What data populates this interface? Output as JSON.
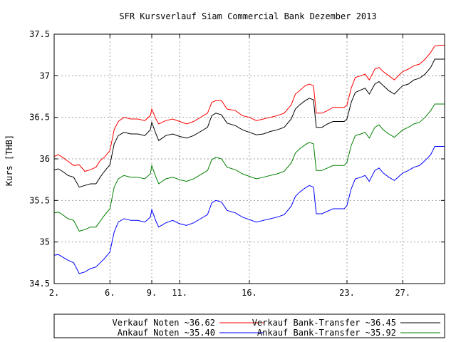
{
  "chart_data": {
    "type": "line",
    "title": "SFR Kursverlauf Siam Commercial Bank Dezember 2013",
    "ylabel": "Kurs [THB]",
    "xlabel": "",
    "ylim": [
      34.5,
      37.5
    ],
    "xlim": [
      2,
      30
    ],
    "grid": true,
    "legend_position": "bottom",
    "y_ticks": [
      34.5,
      35,
      35.5,
      36,
      36.5,
      37,
      37.5
    ],
    "y_tick_labels": [
      "34.5",
      "35",
      "35.5",
      "36",
      "36.5",
      "37",
      "37.5"
    ],
    "x_ticks": [
      2,
      6,
      9,
      11,
      16,
      23,
      27
    ],
    "x_tick_labels": [
      "2.",
      "6.",
      "9.",
      "11.",
      "16.",
      "23.",
      "27."
    ],
    "series": [
      {
        "name": "Verkauf Noten ~36.62",
        "color": "#ff0000",
        "points": [
          [
            2,
            36.03
          ],
          [
            2.3,
            36.05
          ],
          [
            2.6,
            36.02
          ],
          [
            3,
            35.97
          ],
          [
            3.4,
            35.92
          ],
          [
            3.8,
            35.93
          ],
          [
            4.2,
            35.85
          ],
          [
            4.6,
            35.87
          ],
          [
            5,
            35.9
          ],
          [
            5.3,
            35.98
          ],
          [
            5.6,
            36.02
          ],
          [
            6,
            36.1
          ],
          [
            6.3,
            36.35
          ],
          [
            6.6,
            36.45
          ],
          [
            7,
            36.5
          ],
          [
            7.5,
            36.48
          ],
          [
            8,
            36.48
          ],
          [
            8.5,
            36.46
          ],
          [
            8.9,
            36.52
          ],
          [
            9,
            36.6
          ],
          [
            9.3,
            36.48
          ],
          [
            9.5,
            36.42
          ],
          [
            10,
            36.46
          ],
          [
            10.5,
            36.48
          ],
          [
            11,
            36.45
          ],
          [
            11.5,
            36.42
          ],
          [
            12,
            36.45
          ],
          [
            12.5,
            36.5
          ],
          [
            13,
            36.55
          ],
          [
            13.3,
            36.68
          ],
          [
            13.6,
            36.7
          ],
          [
            14,
            36.7
          ],
          [
            14.4,
            36.6
          ],
          [
            15,
            36.58
          ],
          [
            15.5,
            36.52
          ],
          [
            16,
            36.5
          ],
          [
            16.5,
            36.46
          ],
          [
            17,
            36.48
          ],
          [
            17.5,
            36.5
          ],
          [
            18,
            36.52
          ],
          [
            18.5,
            36.55
          ],
          [
            19,
            36.65
          ],
          [
            19.3,
            36.78
          ],
          [
            19.6,
            36.82
          ],
          [
            20,
            36.88
          ],
          [
            20.3,
            36.9
          ],
          [
            20.6,
            36.88
          ],
          [
            20.8,
            36.55
          ],
          [
            21.2,
            36.55
          ],
          [
            21.6,
            36.58
          ],
          [
            22,
            36.62
          ],
          [
            22.4,
            36.62
          ],
          [
            22.8,
            36.62
          ],
          [
            23,
            36.65
          ],
          [
            23.3,
            36.85
          ],
          [
            23.6,
            36.98
          ],
          [
            24,
            37.0
          ],
          [
            24.3,
            37.02
          ],
          [
            24.6,
            36.95
          ],
          [
            25,
            37.08
          ],
          [
            25.3,
            37.1
          ],
          [
            25.6,
            37.05
          ],
          [
            26,
            37.0
          ],
          [
            26.4,
            36.95
          ],
          [
            26.8,
            37.02
          ],
          [
            27,
            37.05
          ],
          [
            27.4,
            37.08
          ],
          [
            27.8,
            37.12
          ],
          [
            28.2,
            37.14
          ],
          [
            28.6,
            37.2
          ],
          [
            29,
            37.28
          ],
          [
            29.3,
            37.36
          ],
          [
            30,
            37.37
          ]
        ]
      },
      {
        "name": "Verkauf Bank-Transfer ~36.45",
        "color": "#000000",
        "points": [
          [
            2,
            35.87
          ],
          [
            2.3,
            35.88
          ],
          [
            2.6,
            35.85
          ],
          [
            3,
            35.8
          ],
          [
            3.4,
            35.78
          ],
          [
            3.8,
            35.66
          ],
          [
            4.2,
            35.68
          ],
          [
            4.6,
            35.7
          ],
          [
            5,
            35.7
          ],
          [
            5.3,
            35.78
          ],
          [
            5.6,
            35.85
          ],
          [
            6,
            35.93
          ],
          [
            6.3,
            36.18
          ],
          [
            6.6,
            36.28
          ],
          [
            7,
            36.32
          ],
          [
            7.5,
            36.3
          ],
          [
            8,
            36.3
          ],
          [
            8.5,
            36.28
          ],
          [
            8.9,
            36.35
          ],
          [
            9,
            36.44
          ],
          [
            9.3,
            36.3
          ],
          [
            9.5,
            36.22
          ],
          [
            10,
            36.28
          ],
          [
            10.5,
            36.3
          ],
          [
            11,
            36.27
          ],
          [
            11.5,
            36.25
          ],
          [
            12,
            36.28
          ],
          [
            12.5,
            36.33
          ],
          [
            13,
            36.38
          ],
          [
            13.3,
            36.52
          ],
          [
            13.6,
            36.55
          ],
          [
            14,
            36.53
          ],
          [
            14.4,
            36.43
          ],
          [
            15,
            36.4
          ],
          [
            15.5,
            36.35
          ],
          [
            16,
            36.32
          ],
          [
            16.5,
            36.29
          ],
          [
            17,
            36.3
          ],
          [
            17.5,
            36.33
          ],
          [
            18,
            36.35
          ],
          [
            18.5,
            36.38
          ],
          [
            19,
            36.48
          ],
          [
            19.3,
            36.6
          ],
          [
            19.6,
            36.65
          ],
          [
            20,
            36.7
          ],
          [
            20.3,
            36.73
          ],
          [
            20.6,
            36.71
          ],
          [
            20.8,
            36.38
          ],
          [
            21.2,
            36.38
          ],
          [
            21.6,
            36.42
          ],
          [
            22,
            36.45
          ],
          [
            22.4,
            36.45
          ],
          [
            22.8,
            36.45
          ],
          [
            23,
            36.48
          ],
          [
            23.3,
            36.68
          ],
          [
            23.6,
            36.8
          ],
          [
            24,
            36.83
          ],
          [
            24.3,
            36.85
          ],
          [
            24.6,
            36.78
          ],
          [
            25,
            36.9
          ],
          [
            25.3,
            36.93
          ],
          [
            25.6,
            36.88
          ],
          [
            26,
            36.82
          ],
          [
            26.4,
            36.78
          ],
          [
            26.8,
            36.85
          ],
          [
            27,
            36.88
          ],
          [
            27.4,
            36.9
          ],
          [
            27.8,
            36.95
          ],
          [
            28.2,
            36.97
          ],
          [
            28.6,
            37.02
          ],
          [
            29,
            37.1
          ],
          [
            29.3,
            37.2
          ],
          [
            30,
            37.2
          ]
        ]
      },
      {
        "name": "Ankauf Noten ~35.40",
        "color": "#0000ff",
        "points": [
          [
            2,
            34.84
          ],
          [
            2.3,
            34.85
          ],
          [
            2.6,
            34.82
          ],
          [
            3,
            34.78
          ],
          [
            3.4,
            34.75
          ],
          [
            3.8,
            34.62
          ],
          [
            4.2,
            34.64
          ],
          [
            4.6,
            34.68
          ],
          [
            5,
            34.7
          ],
          [
            5.3,
            34.75
          ],
          [
            5.6,
            34.8
          ],
          [
            6,
            34.88
          ],
          [
            6.3,
            35.12
          ],
          [
            6.6,
            35.24
          ],
          [
            7,
            35.28
          ],
          [
            7.5,
            35.26
          ],
          [
            8,
            35.26
          ],
          [
            8.5,
            35.24
          ],
          [
            8.9,
            35.3
          ],
          [
            9,
            35.39
          ],
          [
            9.3,
            35.25
          ],
          [
            9.5,
            35.18
          ],
          [
            10,
            35.23
          ],
          [
            10.5,
            35.26
          ],
          [
            11,
            35.22
          ],
          [
            11.5,
            35.2
          ],
          [
            12,
            35.23
          ],
          [
            12.5,
            35.28
          ],
          [
            13,
            35.33
          ],
          [
            13.3,
            35.47
          ],
          [
            13.6,
            35.5
          ],
          [
            14,
            35.48
          ],
          [
            14.4,
            35.38
          ],
          [
            15,
            35.35
          ],
          [
            15.5,
            35.3
          ],
          [
            16,
            35.27
          ],
          [
            16.5,
            35.24
          ],
          [
            17,
            35.26
          ],
          [
            17.5,
            35.28
          ],
          [
            18,
            35.3
          ],
          [
            18.5,
            35.33
          ],
          [
            19,
            35.43
          ],
          [
            19.3,
            35.55
          ],
          [
            19.6,
            35.6
          ],
          [
            20,
            35.65
          ],
          [
            20.3,
            35.68
          ],
          [
            20.6,
            35.66
          ],
          [
            20.8,
            35.34
          ],
          [
            21.2,
            35.34
          ],
          [
            21.6,
            35.37
          ],
          [
            22,
            35.4
          ],
          [
            22.4,
            35.4
          ],
          [
            22.8,
            35.4
          ],
          [
            23,
            35.44
          ],
          [
            23.3,
            35.64
          ],
          [
            23.6,
            35.76
          ],
          [
            24,
            35.78
          ],
          [
            24.3,
            35.8
          ],
          [
            24.6,
            35.73
          ],
          [
            25,
            35.86
          ],
          [
            25.3,
            35.89
          ],
          [
            25.6,
            35.83
          ],
          [
            26,
            35.78
          ],
          [
            26.4,
            35.74
          ],
          [
            26.8,
            35.8
          ],
          [
            27,
            35.83
          ],
          [
            27.4,
            35.86
          ],
          [
            27.8,
            35.9
          ],
          [
            28.2,
            35.92
          ],
          [
            28.6,
            35.98
          ],
          [
            29,
            36.05
          ],
          [
            29.3,
            36.15
          ],
          [
            30,
            36.15
          ]
        ]
      },
      {
        "name": "Ankauf Bank-Transfer ~35.92",
        "color": "#008000",
        "points": [
          [
            2,
            35.35
          ],
          [
            2.3,
            35.36
          ],
          [
            2.6,
            35.33
          ],
          [
            3,
            35.28
          ],
          [
            3.4,
            35.26
          ],
          [
            3.8,
            35.13
          ],
          [
            4.2,
            35.15
          ],
          [
            4.6,
            35.18
          ],
          [
            5,
            35.18
          ],
          [
            5.3,
            35.25
          ],
          [
            5.6,
            35.32
          ],
          [
            6,
            35.4
          ],
          [
            6.3,
            35.66
          ],
          [
            6.6,
            35.76
          ],
          [
            7,
            35.8
          ],
          [
            7.5,
            35.78
          ],
          [
            8,
            35.78
          ],
          [
            8.5,
            35.76
          ],
          [
            8.9,
            35.82
          ],
          [
            9,
            35.92
          ],
          [
            9.3,
            35.78
          ],
          [
            9.5,
            35.7
          ],
          [
            10,
            35.76
          ],
          [
            10.5,
            35.78
          ],
          [
            11,
            35.75
          ],
          [
            11.5,
            35.73
          ],
          [
            12,
            35.76
          ],
          [
            12.5,
            35.81
          ],
          [
            13,
            35.86
          ],
          [
            13.3,
            35.99
          ],
          [
            13.6,
            36.02
          ],
          [
            14,
            36.0
          ],
          [
            14.4,
            35.9
          ],
          [
            15,
            35.87
          ],
          [
            15.5,
            35.82
          ],
          [
            16,
            35.79
          ],
          [
            16.5,
            35.76
          ],
          [
            17,
            35.78
          ],
          [
            17.5,
            35.8
          ],
          [
            18,
            35.82
          ],
          [
            18.5,
            35.85
          ],
          [
            19,
            35.95
          ],
          [
            19.3,
            36.07
          ],
          [
            19.6,
            36.12
          ],
          [
            20,
            36.17
          ],
          [
            20.3,
            36.2
          ],
          [
            20.6,
            36.18
          ],
          [
            20.8,
            35.86
          ],
          [
            21.2,
            35.86
          ],
          [
            21.6,
            35.89
          ],
          [
            22,
            35.92
          ],
          [
            22.4,
            35.92
          ],
          [
            22.8,
            35.92
          ],
          [
            23,
            35.96
          ],
          [
            23.3,
            36.16
          ],
          [
            23.6,
            36.28
          ],
          [
            24,
            36.3
          ],
          [
            24.3,
            36.32
          ],
          [
            24.6,
            36.25
          ],
          [
            25,
            36.38
          ],
          [
            25.3,
            36.41
          ],
          [
            25.6,
            36.35
          ],
          [
            26,
            36.3
          ],
          [
            26.4,
            36.26
          ],
          [
            26.8,
            36.32
          ],
          [
            27,
            36.35
          ],
          [
            27.4,
            36.38
          ],
          [
            27.8,
            36.42
          ],
          [
            28.2,
            36.44
          ],
          [
            28.6,
            36.5
          ],
          [
            29,
            36.58
          ],
          [
            29.3,
            36.66
          ],
          [
            30,
            36.66
          ]
        ]
      }
    ],
    "legend": {
      "rows": [
        [
          "Verkauf Noten ~36.62",
          "Verkauf Bank-Transfer ~36.45"
        ],
        [
          "Ankauf Noten ~35.40",
          "Ankauf Bank-Transfer ~35.92"
        ]
      ]
    }
  }
}
